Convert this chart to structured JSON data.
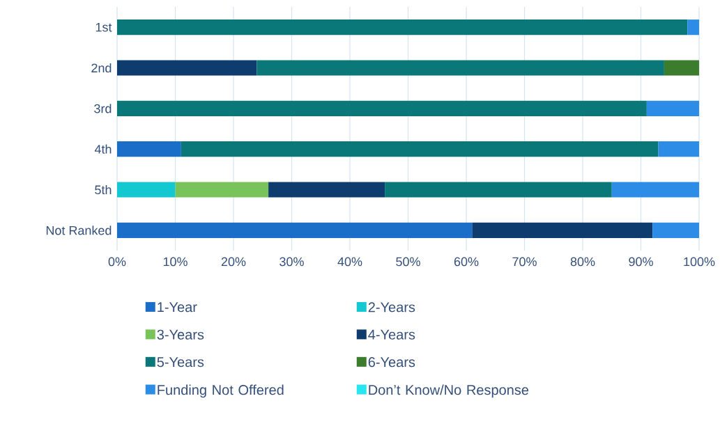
{
  "chart_data": {
    "type": "bar",
    "orientation": "horizontal",
    "stacked": true,
    "categories": [
      "1st",
      "2nd",
      "3rd",
      "4th",
      "5th",
      "Not Ranked"
    ],
    "series": [
      {
        "name": "1-Year",
        "color": "#1a6ec8",
        "values": [
          null,
          null,
          null,
          11,
          null,
          61
        ]
      },
      {
        "name": "2-Years",
        "color": "#14c8d2",
        "values": [
          null,
          null,
          null,
          null,
          10,
          null
        ]
      },
      {
        "name": "3-Years",
        "color": "#78c35a",
        "values": [
          null,
          null,
          null,
          null,
          16,
          null
        ]
      },
      {
        "name": "4-Years",
        "color": "#0f3c6e",
        "values": [
          null,
          24,
          null,
          null,
          20,
          31
        ]
      },
      {
        "name": "5-Years",
        "color": "#0a7878",
        "values": [
          98,
          70,
          91,
          82,
          39,
          null
        ]
      },
      {
        "name": "6-Years",
        "color": "#3c7d2d",
        "values": [
          null,
          6,
          null,
          null,
          null,
          null
        ]
      },
      {
        "name": "Funding Not Offered",
        "color": "#2d8ce6",
        "values": [
          2,
          null,
          9,
          7,
          15,
          8
        ]
      },
      {
        "name": "Don’t Know/No Response",
        "color": "#28e6f0",
        "values": [
          null,
          null,
          null,
          null,
          null,
          null
        ]
      }
    ],
    "xlim": [
      0,
      100
    ],
    "xticks": [
      {
        "value": 0,
        "label": "0%"
      },
      {
        "value": 10,
        "label": "10%"
      },
      {
        "value": 20,
        "label": "20%"
      },
      {
        "value": 30,
        "label": "30%"
      },
      {
        "value": 40,
        "label": "40%"
      },
      {
        "value": 50,
        "label": "50%"
      },
      {
        "value": 60,
        "label": "60%"
      },
      {
        "value": 70,
        "label": "70%"
      },
      {
        "value": 80,
        "label": "80%"
      },
      {
        "value": 90,
        "label": "90%"
      },
      {
        "value": 100,
        "label": "100%"
      }
    ],
    "grid": "x",
    "legend": "bottom"
  }
}
